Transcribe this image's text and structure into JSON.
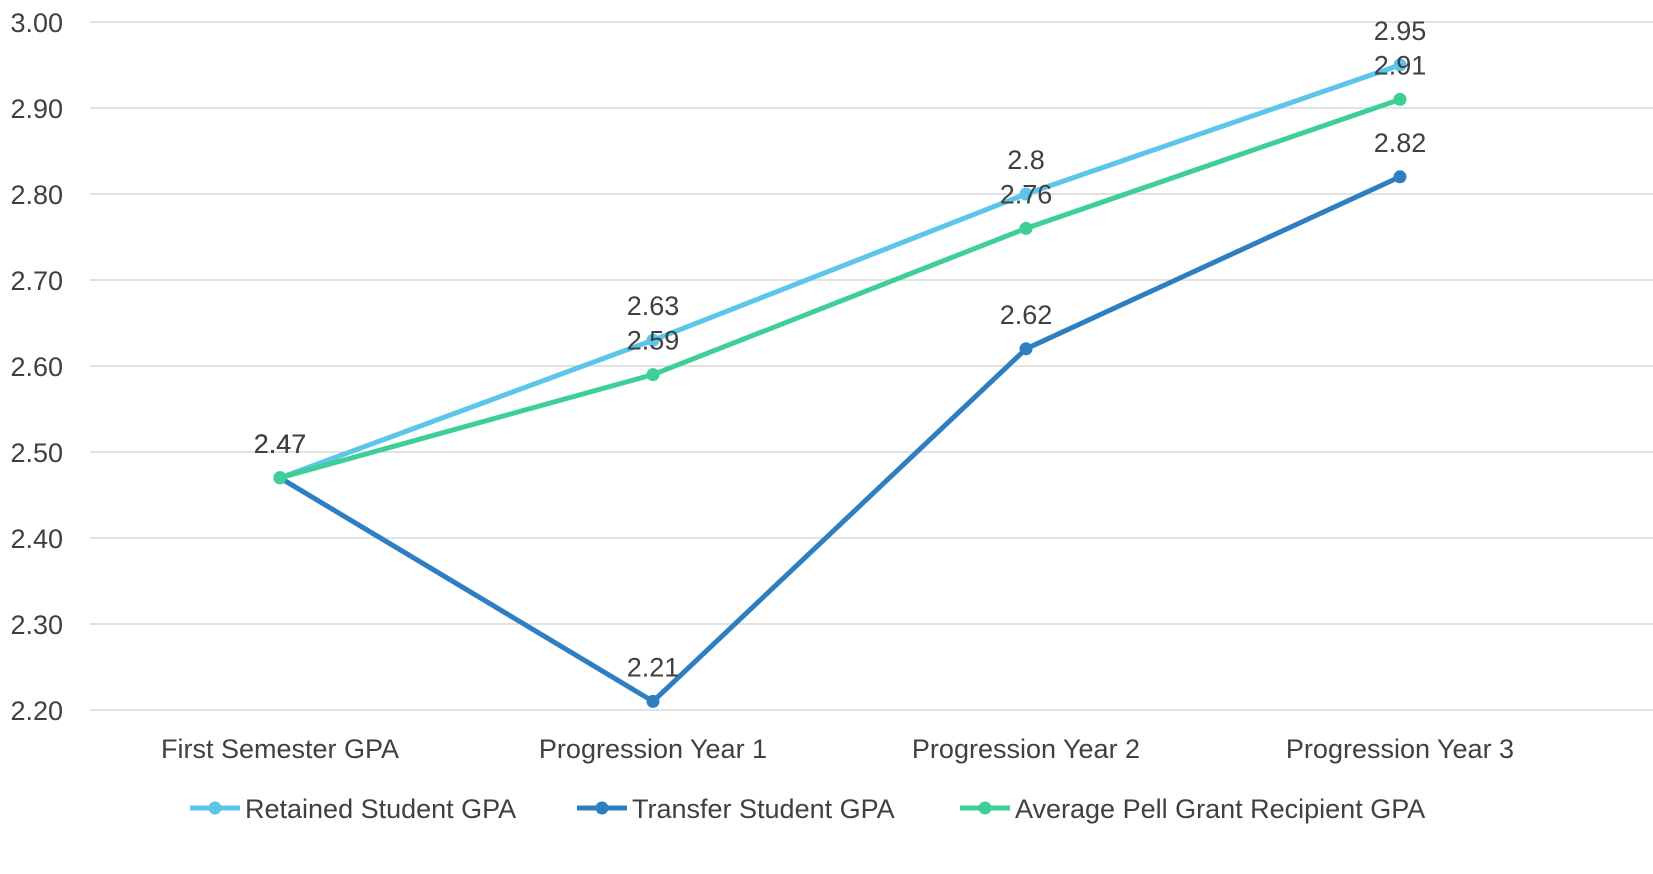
{
  "chart_data": {
    "type": "line",
    "title": "",
    "xlabel": "",
    "ylabel": "",
    "categories": [
      "First Semester GPA",
      "Progression Year 1",
      "Progression Year 2",
      "Progression Year 3"
    ],
    "ylim": [
      2.2,
      3.0
    ],
    "yticks": [
      "2.20",
      "2.30",
      "2.40",
      "2.50",
      "2.60",
      "2.70",
      "2.80",
      "2.90",
      "3.00"
    ],
    "grid": true,
    "legend_position": "bottom",
    "series": [
      {
        "name": "Retained Student GPA",
        "color": "#5bc5ea",
        "values": [
          2.47,
          2.63,
          2.8,
          2.95
        ],
        "labels": [
          "2.47",
          "2.63",
          "2.8",
          "2.95"
        ]
      },
      {
        "name": "Transfer Student GPA",
        "color": "#2e7fc1",
        "values": [
          2.47,
          2.21,
          2.62,
          2.82
        ],
        "labels": [
          "2.47",
          "2.21",
          "2.62",
          "2.82"
        ]
      },
      {
        "name": "Average Pell Grant Recipient GPA",
        "color": "#3ecf96",
        "values": [
          2.47,
          2.59,
          2.76,
          2.91
        ],
        "labels": [
          "2.47",
          "2.59",
          "2.76",
          "2.91"
        ]
      }
    ]
  }
}
